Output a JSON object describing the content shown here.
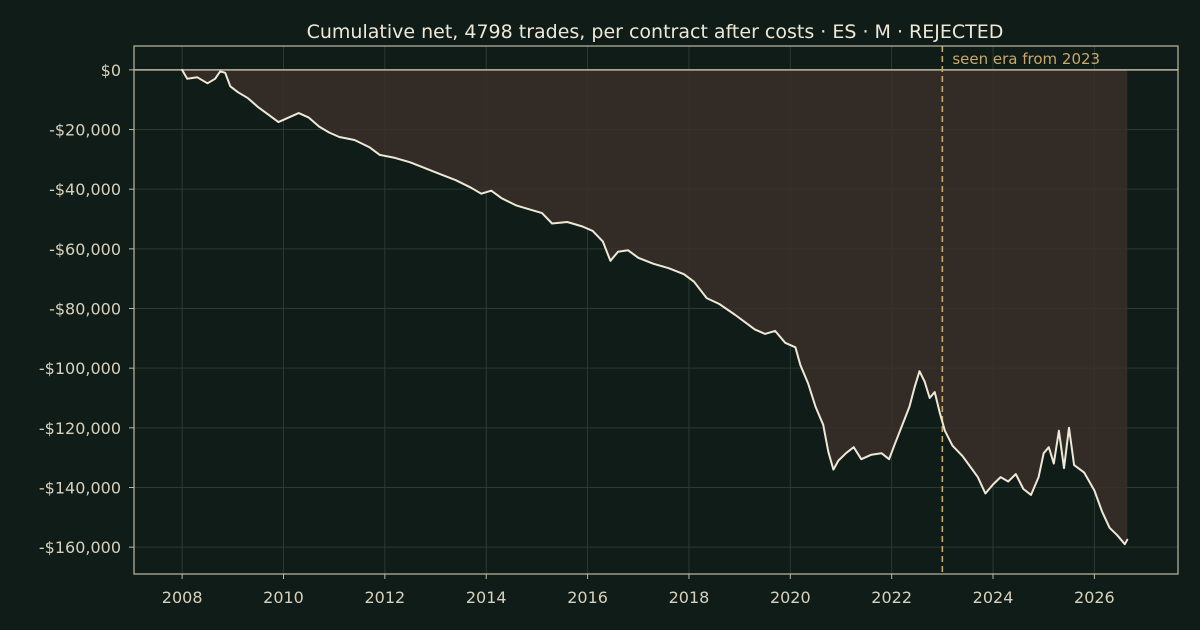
{
  "chart_data": {
    "type": "line",
    "title": "Cumulative net, 4798 trades, per contract after costs  ·  ES · M · REJECTED",
    "xlabel": "",
    "ylabel": "",
    "xlim": [
      2007.05,
      2027.65
    ],
    "ylim": [
      -169000,
      8000
    ],
    "x_ticks": [
      2008,
      2010,
      2012,
      2014,
      2016,
      2018,
      2020,
      2022,
      2024,
      2026
    ],
    "x_tick_labels": [
      "2008",
      "2010",
      "2012",
      "2014",
      "2016",
      "2018",
      "2020",
      "2022",
      "2024",
      "2026"
    ],
    "y_ticks": [
      0,
      -20000,
      -40000,
      -60000,
      -80000,
      -100000,
      -120000,
      -140000,
      -160000
    ],
    "y_tick_labels": [
      "$0",
      "-$20,000",
      "-$40,000",
      "-$60,000",
      "-$80,000",
      "-$100,000",
      "-$120,000",
      "-$140,000",
      "-$160,000"
    ],
    "grid": true,
    "zero_line": 0,
    "series": [
      {
        "color": "#efe8d6",
        "fill_to_zero": true,
        "fill_color": "#3a2f29",
        "points": [
          [
            2008.0,
            0
          ],
          [
            2008.1,
            -3000
          ],
          [
            2008.3,
            -2500
          ],
          [
            2008.5,
            -4500
          ],
          [
            2008.65,
            -3000
          ],
          [
            2008.75,
            -500
          ],
          [
            2008.85,
            -1000
          ],
          [
            2008.95,
            -5500
          ],
          [
            2009.1,
            -7500
          ],
          [
            2009.3,
            -9500
          ],
          [
            2009.5,
            -12500
          ],
          [
            2009.7,
            -15000
          ],
          [
            2009.9,
            -17500
          ],
          [
            2010.1,
            -16000
          ],
          [
            2010.3,
            -14500
          ],
          [
            2010.5,
            -16000
          ],
          [
            2010.7,
            -19000
          ],
          [
            2010.9,
            -21000
          ],
          [
            2011.1,
            -22500
          ],
          [
            2011.4,
            -23500
          ],
          [
            2011.7,
            -26000
          ],
          [
            2011.9,
            -28500
          ],
          [
            2012.2,
            -29500
          ],
          [
            2012.5,
            -31000
          ],
          [
            2012.8,
            -33000
          ],
          [
            2013.1,
            -35000
          ],
          [
            2013.4,
            -37000
          ],
          [
            2013.7,
            -39500
          ],
          [
            2013.9,
            -41500
          ],
          [
            2014.1,
            -40500
          ],
          [
            2014.3,
            -43000
          ],
          [
            2014.6,
            -45500
          ],
          [
            2014.9,
            -47000
          ],
          [
            2015.1,
            -48000
          ],
          [
            2015.3,
            -51500
          ],
          [
            2015.6,
            -51000
          ],
          [
            2015.9,
            -52500
          ],
          [
            2016.1,
            -54000
          ],
          [
            2016.3,
            -57500
          ],
          [
            2016.45,
            -64000
          ],
          [
            2016.6,
            -61000
          ],
          [
            2016.8,
            -60500
          ],
          [
            2017.0,
            -63000
          ],
          [
            2017.3,
            -65000
          ],
          [
            2017.6,
            -66500
          ],
          [
            2017.9,
            -68500
          ],
          [
            2018.1,
            -71000
          ],
          [
            2018.35,
            -76500
          ],
          [
            2018.6,
            -78500
          ],
          [
            2018.9,
            -82000
          ],
          [
            2019.1,
            -84500
          ],
          [
            2019.3,
            -87000
          ],
          [
            2019.5,
            -88500
          ],
          [
            2019.7,
            -87500
          ],
          [
            2019.9,
            -91500
          ],
          [
            2020.1,
            -93000
          ],
          [
            2020.2,
            -99000
          ],
          [
            2020.35,
            -105000
          ],
          [
            2020.5,
            -113000
          ],
          [
            2020.65,
            -119000
          ],
          [
            2020.75,
            -128000
          ],
          [
            2020.85,
            -134000
          ],
          [
            2020.95,
            -131000
          ],
          [
            2021.1,
            -128500
          ],
          [
            2021.25,
            -126500
          ],
          [
            2021.4,
            -130500
          ],
          [
            2021.6,
            -129000
          ],
          [
            2021.8,
            -128500
          ],
          [
            2021.95,
            -130500
          ],
          [
            2022.05,
            -126000
          ],
          [
            2022.2,
            -119500
          ],
          [
            2022.35,
            -113000
          ],
          [
            2022.45,
            -106500
          ],
          [
            2022.55,
            -101000
          ],
          [
            2022.65,
            -104500
          ],
          [
            2022.75,
            -110000
          ],
          [
            2022.85,
            -108000
          ],
          [
            2022.95,
            -115000
          ],
          [
            2023.05,
            -121000
          ],
          [
            2023.2,
            -126000
          ],
          [
            2023.4,
            -129500
          ],
          [
            2023.55,
            -133000
          ],
          [
            2023.7,
            -136500
          ],
          [
            2023.85,
            -142000
          ],
          [
            2024.0,
            -139000
          ],
          [
            2024.15,
            -136500
          ],
          [
            2024.3,
            -138000
          ],
          [
            2024.45,
            -135500
          ],
          [
            2024.6,
            -140500
          ],
          [
            2024.75,
            -142500
          ],
          [
            2024.9,
            -136500
          ],
          [
            2025.0,
            -128500
          ],
          [
            2025.1,
            -126500
          ],
          [
            2025.2,
            -132000
          ],
          [
            2025.3,
            -121000
          ],
          [
            2025.4,
            -133500
          ],
          [
            2025.5,
            -120000
          ],
          [
            2025.6,
            -132500
          ],
          [
            2025.8,
            -135000
          ],
          [
            2026.0,
            -141000
          ],
          [
            2026.15,
            -148000
          ],
          [
            2026.3,
            -153500
          ],
          [
            2026.45,
            -156000
          ],
          [
            2026.6,
            -159000
          ],
          [
            2026.65,
            -157500
          ]
        ]
      }
    ],
    "vline": {
      "x": 2023.0,
      "color": "#c9a86b",
      "label": "seen era from 2023"
    }
  }
}
